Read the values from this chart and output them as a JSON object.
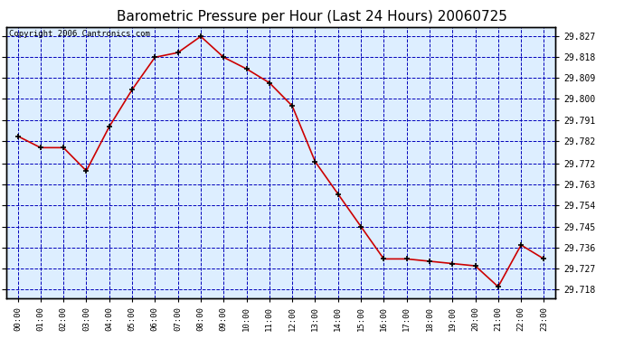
{
  "title": "Barometric Pressure per Hour (Last 24 Hours) 20060725",
  "copyright": "Copyright 2006 Cantronics.com",
  "hours": [
    "00:00",
    "01:00",
    "02:00",
    "03:00",
    "04:00",
    "05:00",
    "06:00",
    "07:00",
    "08:00",
    "09:00",
    "10:00",
    "11:00",
    "12:00",
    "13:00",
    "14:00",
    "15:00",
    "16:00",
    "17:00",
    "18:00",
    "19:00",
    "20:00",
    "21:00",
    "22:00",
    "23:00"
  ],
  "values": [
    29.784,
    29.779,
    29.779,
    29.769,
    29.788,
    29.804,
    29.818,
    29.82,
    29.827,
    29.818,
    29.813,
    29.807,
    29.797,
    29.773,
    29.759,
    29.745,
    29.731,
    29.731,
    29.73,
    29.729,
    29.728,
    29.719,
    29.737,
    29.731
  ],
  "line_color": "#cc0000",
  "marker_color": "#000000",
  "background_color": "#ddeeff",
  "grid_color": "#0000bb",
  "title_color": "#000000",
  "axes_border_color": "#000000",
  "ytick_labels": [
    "29.827",
    "29.818",
    "29.809",
    "29.800",
    "29.791",
    "29.782",
    "29.772",
    "29.763",
    "29.754",
    "29.745",
    "29.736",
    "29.727",
    "29.718"
  ],
  "ytick_values": [
    29.827,
    29.818,
    29.809,
    29.8,
    29.791,
    29.782,
    29.772,
    29.763,
    29.754,
    29.745,
    29.736,
    29.727,
    29.718
  ],
  "ylim_min": 29.714,
  "ylim_max": 29.831,
  "copyright_fontsize": 6.5,
  "title_fontsize": 11
}
